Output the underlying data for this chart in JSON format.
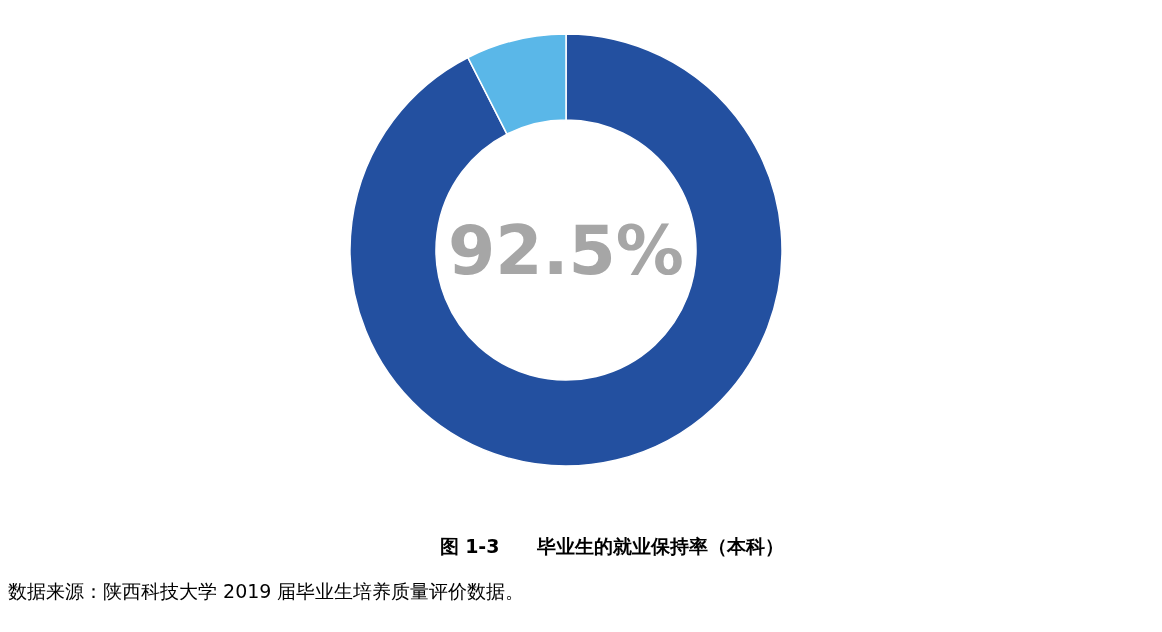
{
  "chart_data": {
    "type": "donut",
    "title": "图 1-3　　毕业生的就业保持率（本科）",
    "categories": [
      null,
      null
    ],
    "values": [
      92.5,
      7.5
    ],
    "colors": [
      "#2350a0",
      "#5ab7e8"
    ],
    "value_labels": [
      "92.5%",
      null
    ],
    "annotations": [
      "数据来源：陕西科技大学 2019 届毕业生培养质量评价数据。"
    ]
  }
}
